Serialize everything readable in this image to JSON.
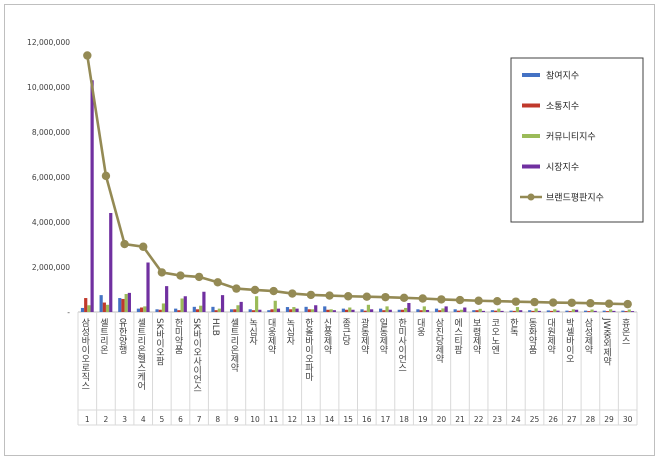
{
  "chart_data": {
    "type": "bar",
    "categories": [
      "1",
      "2",
      "3",
      "4",
      "5",
      "6",
      "7",
      "8",
      "9",
      "10",
      "11",
      "12",
      "13",
      "14",
      "15",
      "16",
      "17",
      "18",
      "19",
      "20",
      "21",
      "22",
      "23",
      "24",
      "25",
      "26",
      "27",
      "28",
      "29",
      "30"
    ],
    "brand_labels": [
      "삼성바이오로직스",
      "셀트리온",
      "유한양행",
      "셀트리온헬스케어",
      "SK바이오팜",
      "한미약품",
      "SK바이오사이언스",
      "HLB",
      "셀트리온제약",
      "녹십자",
      "대웅제약",
      "녹십자",
      "한올바이오파마",
      "신풍제약",
      "종근당",
      "광동제약",
      "일동제약",
      "한미사이언스",
      "대웅",
      "삼진당제약",
      "에스티팜",
      "보령제약",
      "코오노엔",
      "한독",
      "동화약품",
      "대원제약",
      "박셀바이오",
      "삼성제약",
      "JW중외제약",
      "휴온스"
    ],
    "ylim": [
      0,
      12000000
    ],
    "yticks": [
      0,
      2000000,
      4000000,
      6000000,
      8000000,
      10000000,
      12000000
    ],
    "ytick_labels": [
      "-",
      "2,000,000",
      "4,000,000",
      "6,000,000",
      "8,000,000",
      "10,000,000",
      "12,000,000"
    ],
    "series": [
      {
        "name": "참여지수",
        "color": "#4472c4",
        "values": [
          180000,
          750000,
          620000,
          150000,
          120000,
          150000,
          230000,
          230000,
          120000,
          120000,
          80000,
          220000,
          230000,
          250000,
          150000,
          120000,
          150000,
          100000,
          120000,
          150000,
          120000,
          80000,
          80000,
          60000,
          80000,
          70000,
          60000,
          60000,
          60000,
          60000
        ]
      },
      {
        "name": "소통지수",
        "color": "#c0392b",
        "values": [
          620000,
          420000,
          580000,
          200000,
          100000,
          80000,
          120000,
          80000,
          120000,
          80000,
          120000,
          120000,
          120000,
          100000,
          100000,
          60000,
          80000,
          100000,
          80000,
          80000,
          60000,
          80000,
          60000,
          50000,
          50000,
          50000,
          40000,
          40000,
          40000,
          40000
        ]
      },
      {
        "name": "커뮤니티지수",
        "color": "#9bbb59",
        "values": [
          300000,
          320000,
          800000,
          250000,
          380000,
          600000,
          280000,
          150000,
          300000,
          700000,
          500000,
          220000,
          120000,
          120000,
          200000,
          320000,
          250000,
          180000,
          250000,
          160000,
          100000,
          140000,
          150000,
          220000,
          160000,
          120000,
          120000,
          110000,
          120000,
          110000
        ]
      },
      {
        "name": "시장지수",
        "color": "#7030a0",
        "values": [
          10300000,
          4400000,
          850000,
          2200000,
          1150000,
          700000,
          900000,
          750000,
          450000,
          100000,
          150000,
          150000,
          300000,
          80000,
          100000,
          120000,
          100000,
          400000,
          90000,
          250000,
          200000,
          50000,
          50000,
          80000,
          50000,
          60000,
          100000,
          50000,
          50000,
          40000
        ]
      }
    ],
    "line": {
      "name": "브랜드평판지수",
      "color": "#948a54",
      "values": [
        11400000,
        6050000,
        3020000,
        2900000,
        1760000,
        1620000,
        1560000,
        1320000,
        1040000,
        980000,
        930000,
        820000,
        760000,
        730000,
        700000,
        680000,
        660000,
        630000,
        600000,
        560000,
        530000,
        500000,
        480000,
        460000,
        440000,
        420000,
        410000,
        390000,
        370000,
        350000
      ]
    },
    "legend_position": "right",
    "grid": false,
    "title": "",
    "xlabel": "",
    "ylabel": ""
  }
}
